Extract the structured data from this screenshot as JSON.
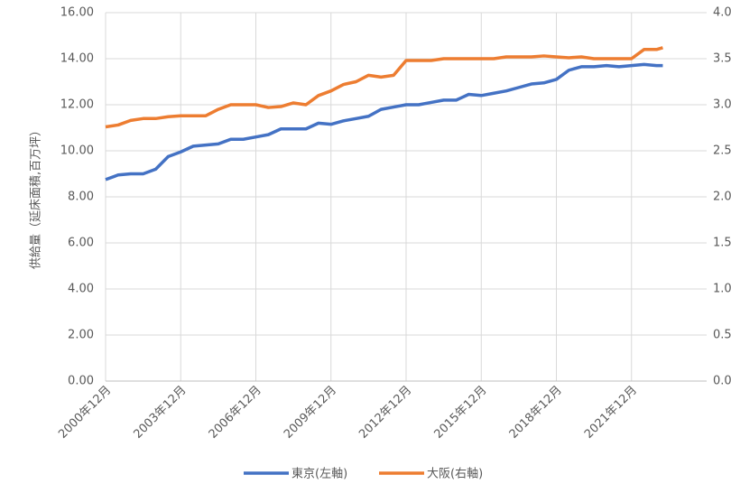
{
  "chart_data": {
    "type": "line",
    "y_label": "供給量（延床面積,百万坪）",
    "x": [
      "2000-12",
      "2001-06",
      "2001-12",
      "2002-06",
      "2002-12",
      "2003-06",
      "2003-12",
      "2004-06",
      "2004-12",
      "2005-06",
      "2005-12",
      "2006-06",
      "2006-12",
      "2007-06",
      "2007-12",
      "2008-06",
      "2008-12",
      "2009-06",
      "2009-12",
      "2010-06",
      "2010-12",
      "2011-06",
      "2011-12",
      "2012-06",
      "2012-12",
      "2013-06",
      "2013-12",
      "2014-06",
      "2014-12",
      "2015-06",
      "2015-12",
      "2016-06",
      "2016-12",
      "2017-06",
      "2017-12",
      "2018-06",
      "2018-12",
      "2019-06",
      "2019-12",
      "2020-06",
      "2020-12",
      "2021-06",
      "2021-12",
      "2022-06",
      "2022-12",
      "2023-03"
    ],
    "series": [
      {
        "name": "東京(左軸)",
        "color": "#4472c4",
        "axis": "y",
        "values": [
          8.75,
          8.95,
          9.0,
          9.0,
          9.2,
          9.75,
          9.95,
          10.2,
          10.25,
          10.3,
          10.5,
          10.5,
          10.6,
          10.7,
          10.95,
          10.95,
          10.95,
          11.2,
          11.15,
          11.3,
          11.4,
          11.5,
          11.8,
          11.9,
          12.0,
          12.0,
          12.1,
          12.2,
          12.2,
          12.45,
          12.4,
          12.5,
          12.6,
          12.75,
          12.9,
          12.95,
          13.1,
          13.5,
          13.65,
          13.65,
          13.7,
          13.65,
          13.7,
          13.75,
          13.7,
          13.7
        ]
      },
      {
        "name": "大阪(右軸)",
        "color": "#ed7d31",
        "axis": "y2",
        "values": [
          2.76,
          2.78,
          2.83,
          2.85,
          2.85,
          2.87,
          2.88,
          2.88,
          2.88,
          2.95,
          3.0,
          3.0,
          3.0,
          2.97,
          2.98,
          3.02,
          3.0,
          3.1,
          3.15,
          3.22,
          3.25,
          3.32,
          3.3,
          3.32,
          3.48,
          3.48,
          3.48,
          3.5,
          3.5,
          3.5,
          3.5,
          3.5,
          3.52,
          3.52,
          3.52,
          3.53,
          3.52,
          3.51,
          3.52,
          3.5,
          3.5,
          3.5,
          3.5,
          3.6,
          3.6,
          3.62
        ]
      }
    ],
    "xlim": [
      "2000-12",
      "2024-12"
    ],
    "xticks": [
      {
        "value": "2000-12",
        "label": "2000年12月"
      },
      {
        "value": "2003-12",
        "label": "2003年12月"
      },
      {
        "value": "2006-12",
        "label": "2006年12月"
      },
      {
        "value": "2009-12",
        "label": "2009年12月"
      },
      {
        "value": "2012-12",
        "label": "2012年12月"
      },
      {
        "value": "2015-12",
        "label": "2015年12月"
      },
      {
        "value": "2018-12",
        "label": "2018年12月"
      },
      {
        "value": "2021-12",
        "label": "2021年12月"
      }
    ],
    "ylim": [
      0,
      16
    ],
    "yticks": [
      {
        "value": 0,
        "label": "0.00"
      },
      {
        "value": 2,
        "label": "2.00"
      },
      {
        "value": 4,
        "label": "4.00"
      },
      {
        "value": 6,
        "label": "6.00"
      },
      {
        "value": 8,
        "label": "8.00"
      },
      {
        "value": 10,
        "label": "10.00"
      },
      {
        "value": 12,
        "label": "12.00"
      },
      {
        "value": 14,
        "label": "14.00"
      },
      {
        "value": 16,
        "label": "16.00"
      }
    ],
    "y2lim": [
      0,
      4
    ],
    "y2ticks": [
      {
        "value": 0,
        "label": "0.00"
      },
      {
        "value": 0.5,
        "label": "0.50"
      },
      {
        "value": 1,
        "label": "1.00"
      },
      {
        "value": 1.5,
        "label": "1.50"
      },
      {
        "value": 2,
        "label": "2.00"
      },
      {
        "value": 2.5,
        "label": "2.50"
      },
      {
        "value": 3,
        "label": "3.00"
      },
      {
        "value": 3.5,
        "label": "3.50"
      },
      {
        "value": 4,
        "label": "4.00"
      }
    ],
    "grid": true,
    "legend": "bottom"
  }
}
